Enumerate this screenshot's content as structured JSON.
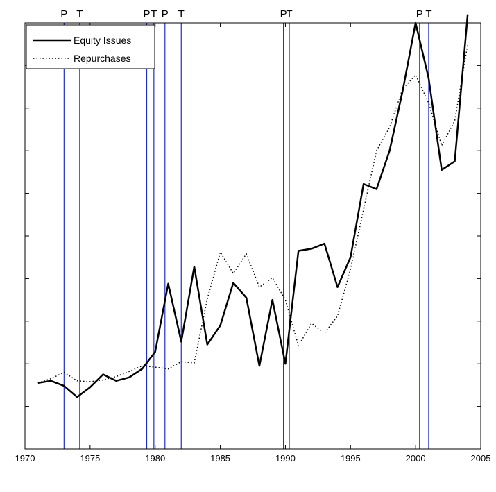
{
  "chart_data": {
    "type": "line",
    "title": "",
    "xlabel": "",
    "ylabel": "",
    "xlim": [
      1970,
      2005
    ],
    "ylim": [
      0,
      10
    ],
    "x_ticks": [
      1970,
      1975,
      1980,
      1985,
      1990,
      1995,
      2000,
      2005
    ],
    "y_ticks": [
      0,
      1,
      2,
      3,
      4,
      5,
      6,
      7,
      8,
      9,
      10
    ],
    "y_tick_labels_visible": false,
    "grid": false,
    "legend_position": "top-left",
    "series": [
      {
        "name": "Equity Issues",
        "style": "solid",
        "color": "#000000",
        "x": [
          1971,
          1972,
          1973,
          1974,
          1975,
          1976,
          1977,
          1978,
          1979,
          1980,
          1981,
          1982,
          1983,
          1984,
          1985,
          1986,
          1987,
          1988,
          1989,
          1990,
          1991,
          1992,
          1993,
          1994,
          1995,
          1996,
          1997,
          1998,
          1999,
          2000,
          2001,
          2002,
          2003,
          2004
        ],
        "y": [
          1.55,
          1.6,
          1.48,
          1.22,
          1.45,
          1.75,
          1.6,
          1.68,
          1.88,
          2.28,
          3.88,
          2.52,
          4.28,
          2.45,
          2.9,
          3.9,
          3.55,
          1.95,
          3.5,
          2.0,
          4.65,
          4.7,
          4.82,
          3.8,
          4.5,
          6.22,
          6.1,
          7.0,
          8.4,
          10.0,
          8.7,
          6.55,
          6.75,
          10.2
        ]
      },
      {
        "name": "Repurchases",
        "style": "dotted",
        "color": "#000000",
        "x": [
          1971,
          1972,
          1973,
          1974,
          1975,
          1976,
          1977,
          1978,
          1979,
          1980,
          1981,
          1982,
          1983,
          1984,
          1985,
          1986,
          1987,
          1988,
          1989,
          1990,
          1991,
          1992,
          1993,
          1994,
          1995,
          1996,
          1997,
          1998,
          1999,
          2000,
          2001,
          2002,
          2003,
          2004
        ],
        "y": [
          1.55,
          1.65,
          1.8,
          1.6,
          1.58,
          1.62,
          1.7,
          1.82,
          1.95,
          1.92,
          1.88,
          2.05,
          2.02,
          3.52,
          4.62,
          4.12,
          4.58,
          3.8,
          4.02,
          3.5,
          2.42,
          2.95,
          2.72,
          3.12,
          4.22,
          5.62,
          7.0,
          7.55,
          8.45,
          8.78,
          8.12,
          7.12,
          7.7,
          9.5
        ]
      }
    ],
    "vertical_markers": [
      {
        "label": "P",
        "x": 1973.0
      },
      {
        "label": "T",
        "x": 1974.2
      },
      {
        "label": "P",
        "x": 1979.35
      },
      {
        "label": "T",
        "x": 1979.9
      },
      {
        "label": "P",
        "x": 1980.75
      },
      {
        "label": "T",
        "x": 1982.0
      },
      {
        "label": "P",
        "x": 1989.85
      },
      {
        "label": "T",
        "x": 1990.3
      },
      {
        "label": "P",
        "x": 2000.3
      },
      {
        "label": "T",
        "x": 2001.0
      }
    ],
    "marker_color": "#1f2ec8"
  }
}
